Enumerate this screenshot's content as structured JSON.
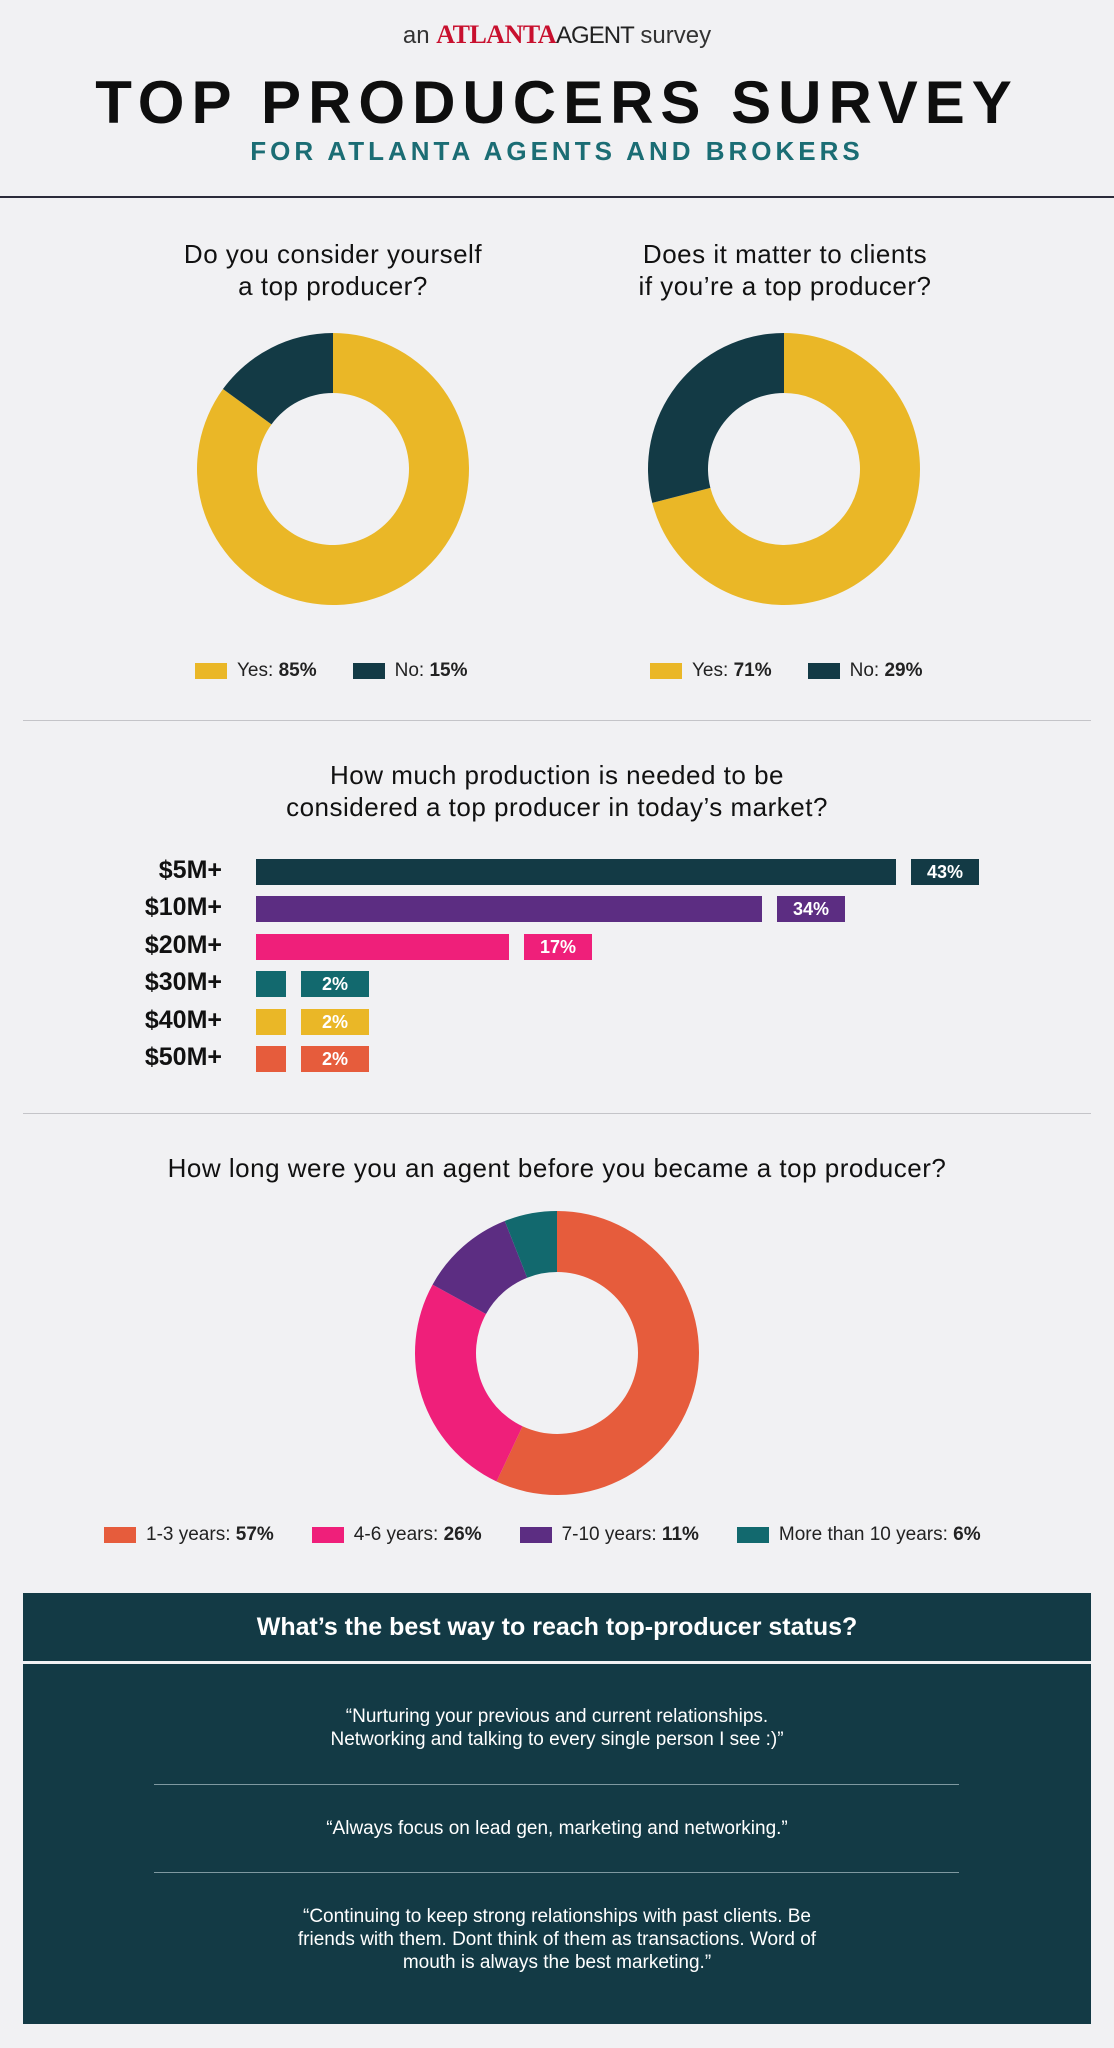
{
  "header": {
    "brand_prefix": "an",
    "brand_atlanta": "ATLANTA",
    "brand_agent": "AGENT",
    "brand_suffix": "survey",
    "title": "TOP PRODUCERS SURVEY",
    "subtitle": "FOR ATLANTA AGENTS AND BROKERS"
  },
  "colors": {
    "yellow": "#eab727",
    "navy": "#133a45",
    "purple": "#5c2d82",
    "pink": "#ef1f7a",
    "teal": "#12696e",
    "orange": "#e65c3c"
  },
  "chart_data": [
    {
      "type": "pie",
      "title_line1": "Do you consider yourself",
      "title_line2": "a top producer?",
      "slices": [
        {
          "label": "Yes:",
          "value": 85,
          "display": "85%",
          "color": "#eab727"
        },
        {
          "label": "No:",
          "value": 15,
          "display": "15%",
          "color": "#133a45"
        }
      ]
    },
    {
      "type": "pie",
      "title_line1": "Does it matter to clients",
      "title_line2": "if you’re a top producer?",
      "slices": [
        {
          "label": "Yes:",
          "value": 71,
          "display": "71%",
          "color": "#eab727"
        },
        {
          "label": "No:",
          "value": 29,
          "display": "29%",
          "color": "#133a45"
        }
      ]
    },
    {
      "type": "bar",
      "orientation": "horizontal",
      "title_line1": "How much production is needed to be",
      "title_line2": "considered a top producer in today’s market?",
      "categories": [
        "$5M+",
        "$10M+",
        "$20M+",
        "$30M+",
        "$40M+",
        "$50M+"
      ],
      "values": [
        43,
        34,
        17,
        2,
        2,
        2
      ],
      "labels": [
        "43%",
        "34%",
        "17%",
        "2%",
        "2%",
        "2%"
      ],
      "colors": [
        "#133a45",
        "#5c2d82",
        "#ef1f7a",
        "#12696e",
        "#eab727",
        "#e65c3c"
      ]
    },
    {
      "type": "pie",
      "title_line1": "How long were you an agent before you became a top producer?",
      "slices": [
        {
          "label": "1-3 years:",
          "value": 57,
          "display": "57%",
          "color": "#e65c3c"
        },
        {
          "label": "4-6 years:",
          "value": 26,
          "display": "26%",
          "color": "#ef1f7a"
        },
        {
          "label": "7-10 years:",
          "value": 11,
          "display": "11%",
          "color": "#5c2d82"
        },
        {
          "label": "More than 10 years:",
          "value": 6,
          "display": "6%",
          "color": "#12696e"
        }
      ]
    }
  ],
  "quotes": {
    "heading": "What’s the best way to reach top-producer status?",
    "items": [
      {
        "line1": "“Nurturing your previous and current relationships.",
        "line2": "Networking and talking to every single person I see :)”",
        "line3": ""
      },
      {
        "line1": "“Always focus on lead gen, marketing and networking.”",
        "line2": "",
        "line3": ""
      },
      {
        "line1": "“Continuing to keep strong relationships with past clients. Be",
        "line2": "friends with them. Dont think of them as transactions. Word of",
        "line3": "mouth is always the best marketing.”"
      }
    ]
  }
}
